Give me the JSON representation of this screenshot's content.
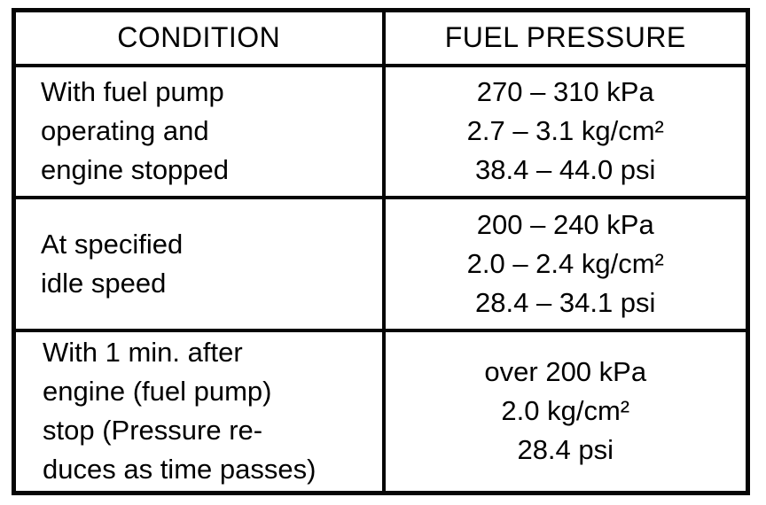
{
  "table": {
    "headers": {
      "condition": "CONDITION",
      "fuel_pressure": "FUEL PRESSURE"
    },
    "rows": [
      {
        "condition": "With fuel pump\noperating and\nengine stopped",
        "pressure": "270 – 310 kPa\n2.7 – 3.1 kg/cm²\n38.4 – 44.0 psi"
      },
      {
        "condition": "At specified\nidle speed",
        "pressure": "200 – 240 kPa\n2.0 – 2.4 kg/cm²\n28.4 – 34.1 psi"
      },
      {
        "condition": "With 1 min. after\nengine (fuel pump)\nstop (Pressure re-\nduces as time passes)",
        "pressure": "over 200 kPa\n2.0 kg/cm²\n28.4 psi"
      }
    ]
  }
}
